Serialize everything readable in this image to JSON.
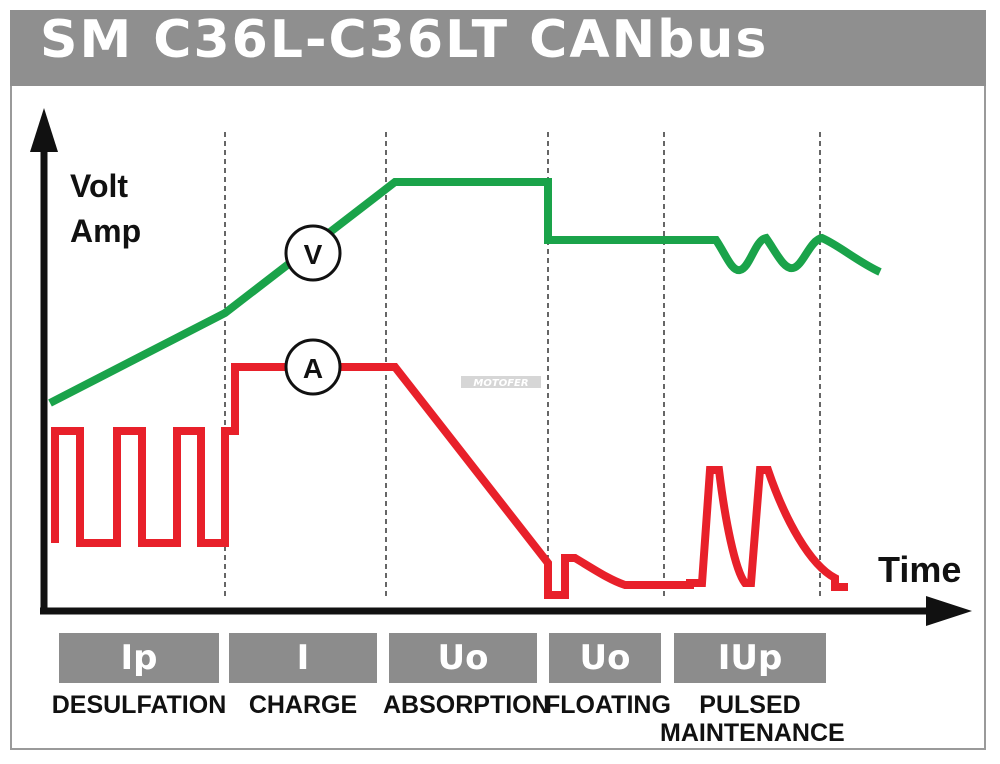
{
  "title": "SM C36L-C36LT CANbus",
  "axis": {
    "y_line1": "Volt",
    "y_line2": "Amp",
    "x": "Time"
  },
  "markers": {
    "voltage": "V",
    "current": "A"
  },
  "watermark": "MOTOFER",
  "colors": {
    "voltage": "#1aa34a",
    "current": "#e8202a",
    "header": "#8f8f8f",
    "phase_box": "#8c8c8c"
  },
  "phases": [
    {
      "code": "Ip",
      "label": "DESULFATION"
    },
    {
      "code": "I",
      "label": "CHARGE"
    },
    {
      "code": "Uo",
      "label": "ABSORPTION"
    },
    {
      "code": "Uo",
      "label": "FLOATING"
    },
    {
      "code": "IUp",
      "label": "PULSED\nMAINTENANCE"
    }
  ]
}
